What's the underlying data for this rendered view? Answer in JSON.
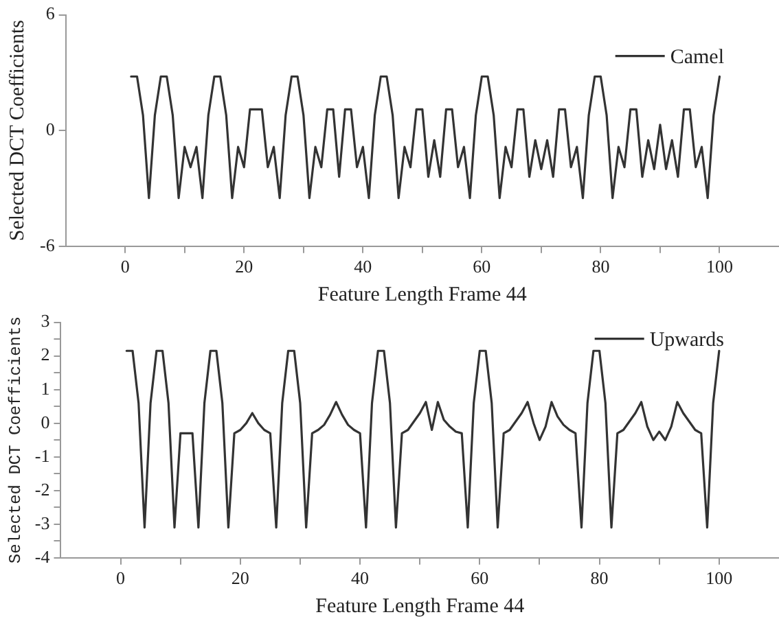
{
  "chart_data": [
    {
      "type": "line",
      "xlabel": "Feature Length Frame 44",
      "ylabel": "Selected DCT Coefficients",
      "xlim": [
        -10,
        110
      ],
      "ylim": [
        -6,
        6
      ],
      "xticks": [
        0,
        {
          "value": 10,
          "label": null
        },
        20,
        {
          "value": 30,
          "label": null
        },
        40,
        {
          "value": 50,
          "label": null
        },
        60,
        {
          "value": 70,
          "label": null
        },
        80,
        {
          "value": 90,
          "label": null
        },
        100
      ],
      "yticks": [
        -6,
        0,
        6
      ],
      "grid": false,
      "legend": "top right",
      "marker": "none",
      "line_style": "solid",
      "x": [
        1,
        2,
        3,
        4,
        5,
        6,
        7,
        8,
        9,
        10,
        11,
        12,
        13,
        14,
        15,
        16,
        17,
        18,
        19,
        20,
        21,
        22,
        23,
        24,
        25,
        26,
        27,
        28,
        29,
        30,
        31,
        32,
        33,
        34,
        35,
        36,
        37,
        38,
        39,
        40,
        41,
        42,
        43,
        44,
        45,
        46,
        47,
        48,
        49,
        50,
        51,
        52,
        53,
        54,
        55,
        56,
        57,
        58,
        59,
        60,
        61,
        62,
        63,
        64,
        65,
        66,
        67,
        68,
        69,
        70,
        71,
        72,
        73,
        74,
        75,
        76,
        77,
        78,
        79,
        80,
        81,
        82,
        83,
        84,
        85,
        86,
        87,
        88,
        89,
        90,
        91,
        92,
        93,
        94,
        95,
        96,
        97,
        98,
        99,
        100
      ],
      "series": [
        {
          "name": "Camel",
          "color": "#333333",
          "values": [
            2.8,
            2.8,
            0.8,
            -3.5,
            0.8,
            2.8,
            2.8,
            0.8,
            -3.5,
            -0.85,
            -1.9,
            -0.85,
            -3.5,
            0.8,
            2.8,
            2.8,
            0.8,
            -3.5,
            -0.85,
            -1.9,
            1.1,
            1.1,
            1.1,
            -1.9,
            -0.85,
            -3.5,
            0.8,
            2.8,
            2.8,
            0.8,
            -3.5,
            -0.85,
            -1.9,
            1.1,
            1.1,
            -2.4,
            1.1,
            1.1,
            -1.9,
            -0.85,
            -3.5,
            0.8,
            2.8,
            2.8,
            0.8,
            -3.5,
            -0.85,
            -1.9,
            1.1,
            1.1,
            -2.4,
            -0.5,
            -2.4,
            1.1,
            1.1,
            -1.9,
            -0.85,
            -3.5,
            0.8,
            2.8,
            2.8,
            0.8,
            -3.5,
            -0.85,
            -1.9,
            1.1,
            1.1,
            -2.4,
            -0.5,
            -2,
            -0.5,
            -2.4,
            1.1,
            1.1,
            -1.9,
            -0.85,
            -3.5,
            0.8,
            2.8,
            2.8,
            0.8,
            -3.5,
            -0.85,
            -1.9,
            1.1,
            1.1,
            -2.4,
            -0.5,
            -2,
            0.3,
            -2,
            -0.5,
            -2.4,
            1.1,
            1.1,
            -1.9,
            -0.85,
            -3.5,
            0.8,
            2.8
          ]
        }
      ]
    },
    {
      "type": "line",
      "xlabel": "Feature Length Frame 44",
      "ylabel": "Selected DCT Coefficients",
      "xlim": [
        -10,
        110
      ],
      "ylim": [
        -4,
        3
      ],
      "xticks": [
        0,
        {
          "value": 10,
          "label": null
        },
        20,
        {
          "value": 30,
          "label": null
        },
        40,
        {
          "value": 50,
          "label": null
        },
        60,
        {
          "value": 70,
          "label": null
        },
        80,
        {
          "value": 90,
          "label": null
        },
        100
      ],
      "yticks": [
        -4,
        {
          "value": -3.5,
          "label": null
        },
        -3,
        {
          "value": -2.5,
          "label": null
        },
        -2,
        {
          "value": -1.5,
          "label": null
        },
        -1,
        {
          "value": -0.5,
          "label": null
        },
        0,
        {
          "value": 0.5,
          "label": null
        },
        1,
        {
          "value": 1.5,
          "label": null
        },
        2,
        {
          "value": 2.5,
          "label": null
        },
        3
      ],
      "grid": false,
      "legend": "top right",
      "marker": "none",
      "line_style": "solid",
      "x": [
        1,
        2,
        3,
        4,
        5,
        6,
        7,
        8,
        9,
        10,
        11,
        12,
        13,
        14,
        15,
        16,
        17,
        18,
        19,
        20,
        21,
        22,
        23,
        24,
        25,
        26,
        27,
        28,
        29,
        30,
        31,
        32,
        33,
        34,
        35,
        36,
        37,
        38,
        39,
        40,
        41,
        42,
        43,
        44,
        45,
        46,
        47,
        48,
        49,
        50,
        51,
        52,
        53,
        54,
        55,
        56,
        57,
        58,
        59,
        60,
        61,
        62,
        63,
        64,
        65,
        66,
        67,
        68,
        69,
        70,
        71,
        72,
        73,
        74,
        75,
        76,
        77,
        78,
        79,
        80,
        81,
        82,
        83,
        84,
        85,
        86,
        87,
        88,
        89,
        90,
        91,
        92,
        93,
        94,
        95,
        96,
        97,
        98,
        99,
        100
      ],
      "series": [
        {
          "name": "Upwards",
          "color": "#333333",
          "values": [
            2.15,
            2.15,
            0.6,
            -3.1,
            0.6,
            2.15,
            2.15,
            0.6,
            -3.1,
            -0.3,
            -0.3,
            -0.3,
            -3.1,
            0.6,
            2.15,
            2.15,
            0.6,
            -3.1,
            -0.3,
            -0.2,
            0,
            0.3,
            0,
            -0.2,
            -0.3,
            -3.1,
            0.6,
            2.15,
            2.15,
            0.6,
            -3.1,
            -0.3,
            -0.2,
            -0.05,
            0.25,
            0.63,
            0.25,
            -0.05,
            -0.2,
            -0.3,
            -3.1,
            0.6,
            2.15,
            2.15,
            0.6,
            -3.1,
            -0.3,
            -0.2,
            0.05,
            0.3,
            0.63,
            -0.2,
            0.63,
            0.1,
            -0.1,
            -0.25,
            -0.3,
            -3.1,
            0.6,
            2.15,
            2.15,
            0.6,
            -3.1,
            -0.3,
            -0.2,
            0.05,
            0.3,
            0.63,
            0,
            -0.5,
            -0.1,
            0.63,
            0.2,
            -0.05,
            -0.2,
            -0.3,
            -3.1,
            0.6,
            2.15,
            2.15,
            0.6,
            -3.1,
            -0.3,
            -0.2,
            0.05,
            0.3,
            0.63,
            -0.1,
            -0.5,
            -0.25,
            -0.5,
            -0.1,
            0.63,
            0.3,
            0.05,
            -0.2,
            -0.3,
            -3.1,
            0.6,
            2.15
          ]
        }
      ]
    }
  ]
}
